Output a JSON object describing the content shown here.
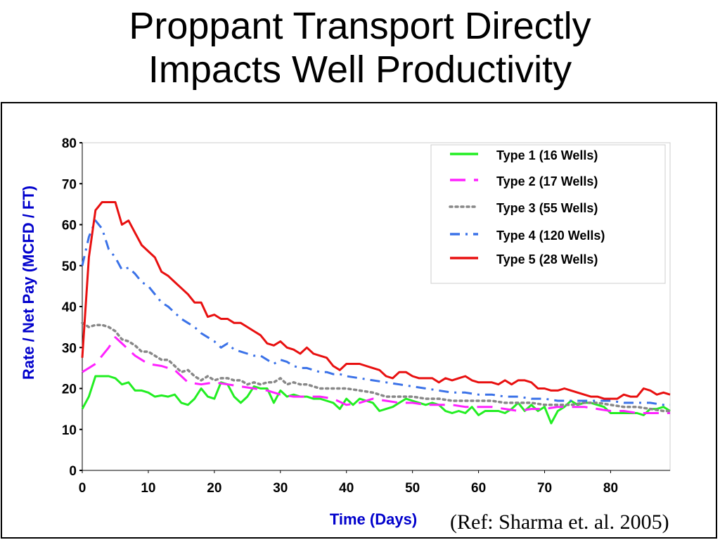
{
  "slide": {
    "title_line1": "Proppant Transport Directly",
    "title_line2": "Impacts Well Productivity",
    "reference": "(Ref: Sharma et. al. 2005)"
  },
  "colors": {
    "axis_label": "#0000cc",
    "type1": "#22ee22",
    "type2": "#ff22ff",
    "type3": "#888888",
    "type4": "#3b72e8",
    "type5": "#e81010"
  },
  "chart_data": {
    "type": "line",
    "title": "",
    "xlabel": "Time (Days)",
    "ylabel": "Rate / Net Pay (MCFD / FT)",
    "xlim": [
      0,
      89
    ],
    "ylim": [
      0,
      80
    ],
    "xticks": [
      0,
      10,
      20,
      30,
      40,
      50,
      60,
      70,
      80
    ],
    "yticks": [
      0,
      10,
      20,
      30,
      40,
      50,
      60,
      70,
      80
    ],
    "grid": false,
    "legend_position": "top-right",
    "series": [
      {
        "name": "Type 1 (16 Wells)",
        "style": "solid",
        "color": "#22ee22",
        "x": [
          0,
          1,
          2,
          3,
          4,
          5,
          6,
          7,
          8,
          9,
          10,
          11,
          12,
          13,
          14,
          15,
          16,
          17,
          18,
          19,
          20,
          21,
          22,
          23,
          24,
          25,
          26,
          27,
          28,
          29,
          30,
          31,
          32,
          33,
          34,
          35,
          36,
          37,
          38,
          39,
          40,
          41,
          42,
          43,
          44,
          45,
          46,
          47,
          48,
          49,
          50,
          51,
          52,
          53,
          54,
          55,
          56,
          57,
          58,
          59,
          60,
          61,
          62,
          63,
          64,
          65,
          66,
          67,
          68,
          69,
          70,
          71,
          72,
          73,
          74,
          75,
          76,
          77,
          78,
          79,
          80,
          81,
          82,
          83,
          84,
          85,
          86,
          87,
          88,
          89
        ],
        "y": [
          15,
          18,
          23,
          23,
          23,
          22.5,
          21,
          21.5,
          19.5,
          19.5,
          19,
          18,
          18.3,
          18,
          18.5,
          16.5,
          16,
          17.5,
          20,
          18,
          17.5,
          21.5,
          21,
          18,
          16.5,
          18,
          20.5,
          20,
          20,
          16.5,
          19.5,
          18,
          18.5,
          18,
          18,
          17.5,
          17.5,
          17,
          16.5,
          15,
          17.5,
          16,
          17.5,
          17,
          16.5,
          14.5,
          15,
          15.5,
          16.5,
          17.5,
          17,
          16.5,
          16,
          16.5,
          16,
          14.5,
          14,
          14.5,
          14,
          15.5,
          13.5,
          14.5,
          14.5,
          14.5,
          14,
          15,
          16.5,
          14.5,
          16,
          14.5,
          15.5,
          11.5,
          14.5,
          15.5,
          17,
          16,
          16.5,
          16.5,
          16,
          15.5,
          14,
          14,
          14,
          14,
          14,
          13.5,
          15,
          15,
          15.5,
          14.5
        ]
      },
      {
        "name": "Type 2 (17 Wells)",
        "style": "dash",
        "color": "#ff22ff",
        "x": [
          0,
          2,
          4,
          5,
          6,
          8,
          10,
          12,
          14,
          15,
          16,
          18,
          20,
          22,
          24,
          26,
          28,
          30,
          32,
          34,
          36,
          38,
          40,
          42,
          44,
          46,
          48,
          50,
          52,
          54,
          56,
          58,
          60,
          62,
          64,
          66,
          68,
          70,
          72,
          74,
          76,
          78,
          80,
          82,
          84,
          86,
          88,
          89
        ],
        "y": [
          24,
          26,
          30,
          32.5,
          31,
          28,
          26,
          25.5,
          24.5,
          23,
          21.5,
          21,
          21.5,
          21,
          20.5,
          20,
          19.5,
          18.5,
          18,
          18,
          18,
          17.5,
          16,
          16.5,
          17.5,
          17,
          16.5,
          16.5,
          16,
          16,
          16,
          15.5,
          15.5,
          15.5,
          15,
          14.5,
          15,
          15,
          15.5,
          15.5,
          15.5,
          15,
          14.5,
          14.5,
          14,
          14,
          14,
          14
        ]
      },
      {
        "name": "Type 3 (55 Wells)",
        "style": "dotted",
        "color": "#888888",
        "x": [
          0,
          1,
          2,
          3,
          4,
          5,
          6,
          7,
          8,
          9,
          10,
          11,
          12,
          13,
          14,
          15,
          16,
          17,
          18,
          19,
          20,
          21,
          22,
          23,
          24,
          25,
          26,
          27,
          28,
          29,
          30,
          31,
          32,
          33,
          34,
          35,
          36,
          37,
          38,
          39,
          40,
          42,
          44,
          46,
          48,
          50,
          52,
          54,
          56,
          58,
          60,
          62,
          64,
          66,
          68,
          70,
          72,
          74,
          76,
          78,
          80,
          82,
          84,
          86,
          88,
          89
        ],
        "y": [
          36,
          35,
          35.5,
          35.5,
          35,
          34,
          32,
          31.5,
          30.5,
          29,
          29,
          28,
          27,
          27,
          25.5,
          24,
          24.5,
          23,
          22,
          23,
          22,
          22.5,
          22.5,
          22,
          22,
          21,
          21.5,
          21,
          21.5,
          21.5,
          22.5,
          21,
          21.5,
          21,
          21,
          20.5,
          20,
          20,
          20,
          20,
          20,
          19.5,
          19,
          18,
          18,
          18,
          17.5,
          17.5,
          17,
          17,
          17,
          17,
          16.5,
          16.5,
          16.5,
          16,
          16,
          16,
          16.5,
          16.5,
          16,
          15.5,
          15.5,
          15,
          14.5,
          14.5
        ]
      },
      {
        "name": "Type 4 (120  Wells)",
        "style": "dashdot",
        "color": "#3b72e8",
        "x": [
          0,
          1,
          2,
          3,
          4,
          5,
          6,
          7,
          8,
          9,
          10,
          11,
          12,
          13,
          14,
          15,
          16,
          17,
          18,
          19,
          20,
          21,
          22,
          23,
          24,
          25,
          26,
          27,
          28,
          29,
          30,
          31,
          32,
          33,
          34,
          35,
          36,
          37,
          38,
          39,
          40,
          42,
          44,
          46,
          48,
          50,
          52,
          54,
          56,
          58,
          60,
          62,
          64,
          66,
          68,
          70,
          72,
          74,
          76,
          78,
          80,
          82,
          84,
          86,
          88,
          89
        ],
        "y": [
          50,
          57,
          61,
          59,
          54,
          52,
          49,
          49.5,
          48,
          46,
          45,
          43,
          41,
          40,
          38.5,
          37,
          36,
          35,
          33.5,
          32.5,
          31.5,
          30,
          31,
          29.5,
          29,
          28.5,
          28,
          28,
          27,
          26,
          27,
          26.5,
          25.5,
          25,
          25,
          24.5,
          24,
          24,
          23.5,
          23.5,
          23,
          22.5,
          22,
          21.5,
          21,
          20.5,
          20,
          19.5,
          19,
          19,
          18.5,
          18.5,
          18,
          18,
          17.5,
          17.5,
          17,
          17,
          17,
          17,
          17,
          16.5,
          16.5,
          16.5,
          16,
          16
        ]
      },
      {
        "name": "Type 5 (28  Wells)",
        "style": "solid",
        "color": "#e81010",
        "x": [
          0,
          1,
          2,
          3,
          4,
          5,
          6,
          7,
          8,
          9,
          10,
          11,
          12,
          13,
          14,
          15,
          16,
          17,
          18,
          19,
          20,
          21,
          22,
          23,
          24,
          25,
          26,
          27,
          28,
          29,
          30,
          31,
          32,
          33,
          34,
          35,
          36,
          37,
          38,
          39,
          40,
          41,
          42,
          43,
          44,
          45,
          46,
          47,
          48,
          49,
          50,
          51,
          52,
          53,
          54,
          55,
          56,
          57,
          58,
          59,
          60,
          61,
          62,
          63,
          64,
          65,
          66,
          67,
          68,
          69,
          70,
          71,
          72,
          73,
          74,
          75,
          76,
          77,
          78,
          79,
          80,
          81,
          82,
          83,
          84,
          85,
          86,
          87,
          88,
          89
        ],
        "y": [
          27.5,
          52,
          63.5,
          65.5,
          65.5,
          65.5,
          60,
          61,
          58,
          55,
          53.5,
          52,
          48.5,
          47.5,
          46,
          44.5,
          43,
          41,
          41,
          37.5,
          38,
          37,
          37,
          36,
          36,
          35,
          34,
          33,
          31,
          30.5,
          31.5,
          30,
          29.5,
          28.5,
          30,
          28.5,
          28,
          27.5,
          25.5,
          24.5,
          26,
          26,
          26,
          25.5,
          25,
          24.5,
          23,
          22.5,
          24,
          24,
          23,
          22.5,
          22.5,
          22.5,
          21.5,
          22.5,
          22,
          22.5,
          23,
          22,
          21.5,
          21.5,
          21.5,
          21,
          22,
          21,
          22,
          22,
          21.5,
          20,
          20,
          19.5,
          19.5,
          20,
          19.5,
          19,
          18.5,
          18,
          18,
          17.5,
          17.5,
          17.5,
          18.5,
          18,
          18,
          20,
          19.5,
          18.5,
          19,
          18.5
        ]
      }
    ]
  }
}
